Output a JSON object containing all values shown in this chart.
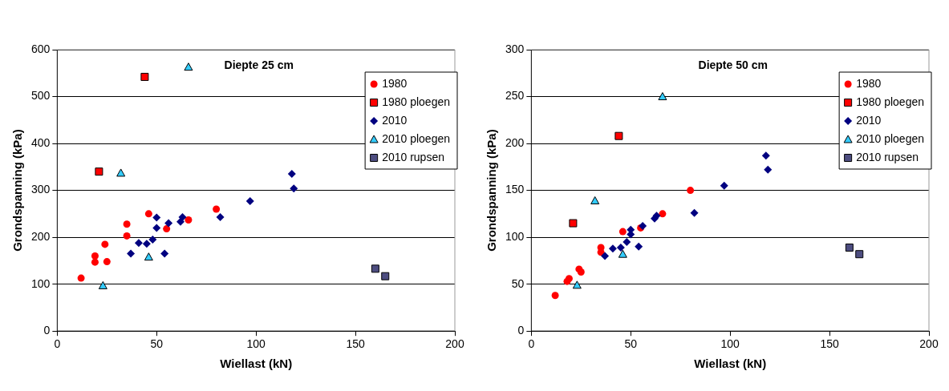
{
  "chart_data": [
    {
      "type": "scatter",
      "title": "Diepte 25 cm",
      "xlabel": "Wiellast (kN)",
      "ylabel": "Grondspanning (kPa)",
      "xlim": [
        0,
        200
      ],
      "xticks": [
        0,
        50,
        100,
        150,
        200
      ],
      "ylim": [
        0,
        600
      ],
      "yticks": [
        0,
        100,
        200,
        300,
        400,
        500,
        600
      ],
      "grid": "y",
      "legend": "top right",
      "series": [
        {
          "name": "1980",
          "color": "#ff0000",
          "marker": "circle",
          "x": [
            12,
            19,
            19,
            24,
            25,
            35,
            35,
            46,
            55,
            66,
            80
          ],
          "values": [
            113,
            160,
            147,
            185,
            148,
            228,
            203,
            250,
            218,
            237,
            260
          ]
        },
        {
          "name": "1980 ploegen",
          "color": "#ff0000",
          "marker": "square",
          "x": [
            21,
            44
          ],
          "values": [
            340,
            542
          ]
        },
        {
          "name": "2010",
          "color": "#000080",
          "marker": "diamond",
          "x": [
            37,
            41,
            45,
            48,
            50,
            50,
            54,
            56,
            62,
            63,
            82,
            97,
            118,
            119
          ],
          "values": [
            165,
            188,
            186,
            195,
            220,
            242,
            165,
            230,
            233,
            243,
            243,
            277,
            335,
            304
          ]
        },
        {
          "name": "2010 ploegen",
          "color": "#33ccff",
          "marker": "triangle",
          "x": [
            23,
            32,
            46,
            66
          ],
          "values": [
            97,
            337,
            158,
            563
          ]
        },
        {
          "name": "2010 rupsen",
          "color": "#4d4d80",
          "marker": "square",
          "x": [
            160,
            165
          ],
          "values": [
            133,
            117
          ]
        }
      ]
    },
    {
      "type": "scatter",
      "title": "Diepte 50 cm",
      "xlabel": "Wiellast (kN)",
      "ylabel": "Grondspanning (kPa)",
      "xlim": [
        0,
        200
      ],
      "xticks": [
        0,
        50,
        100,
        150,
        200
      ],
      "ylim": [
        0,
        300
      ],
      "yticks": [
        0,
        50,
        100,
        150,
        200,
        250,
        300
      ],
      "grid": "y",
      "legend": "top right",
      "series": [
        {
          "name": "1980",
          "color": "#ff0000",
          "marker": "circle",
          "x": [
            12,
            18,
            19,
            24,
            25,
            35,
            35,
            46,
            55,
            66,
            80
          ],
          "values": [
            38,
            53,
            56,
            66,
            63,
            89,
            84,
            106,
            110,
            125,
            150
          ]
        },
        {
          "name": "1980 ploegen",
          "color": "#ff0000",
          "marker": "square",
          "x": [
            21,
            44
          ],
          "values": [
            115,
            208
          ]
        },
        {
          "name": "2010",
          "color": "#000080",
          "marker": "diamond",
          "x": [
            37,
            41,
            45,
            48,
            50,
            50,
            54,
            56,
            62,
            63,
            82,
            97,
            118,
            119
          ],
          "values": [
            80,
            88,
            89,
            95,
            103,
            108,
            90,
            112,
            120,
            123,
            126,
            155,
            187,
            172
          ]
        },
        {
          "name": "2010 ploegen",
          "color": "#33ccff",
          "marker": "triangle",
          "x": [
            23,
            32,
            46,
            66
          ],
          "values": [
            49,
            139,
            82,
            250
          ]
        },
        {
          "name": "2010 rupsen",
          "color": "#4d4d80",
          "marker": "square",
          "x": [
            160,
            165
          ],
          "values": [
            89,
            82
          ]
        }
      ]
    }
  ]
}
